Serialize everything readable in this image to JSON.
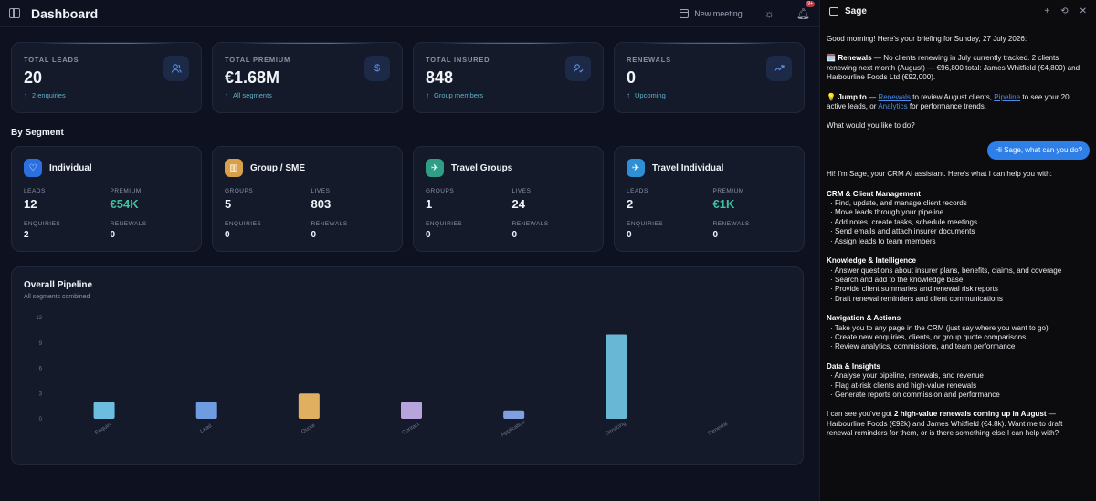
{
  "header": {
    "title": "Dashboard",
    "new_meeting": "New meeting",
    "notif_badge": "9+"
  },
  "stats": [
    {
      "label": "TOTAL LEADS",
      "value": "20",
      "sub": "2 enquiries",
      "icon": "users-icon"
    },
    {
      "label": "TOTAL PREMIUM",
      "value": "€1.68M",
      "sub": "All segments",
      "icon": "dollar-icon"
    },
    {
      "label": "TOTAL INSURED",
      "value": "848",
      "sub": "Group members",
      "icon": "user-check-icon"
    },
    {
      "label": "RENEWALS",
      "value": "0",
      "sub": "Upcoming",
      "icon": "trending-up-icon"
    }
  ],
  "segments_title": "By Segment",
  "segments": [
    {
      "name": "Individual",
      "color": "#2b6fe0",
      "icon": "heart-icon",
      "a_label": "LEADS",
      "a_value": "12",
      "b_label": "PREMIUM",
      "b_value": "€54K",
      "c_label": "ENQUIRIES",
      "c_value": "2",
      "d_label": "RENEWALS",
      "d_value": "0"
    },
    {
      "name": "Group / SME",
      "color": "#d9a04a",
      "icon": "building-icon",
      "a_label": "GROUPS",
      "a_value": "5",
      "b_label": "LIVES",
      "b_value": "803",
      "c_label": "ENQUIRIES",
      "c_value": "0",
      "d_label": "RENEWALS",
      "d_value": "0"
    },
    {
      "name": "Travel Groups",
      "color": "#2e9e86",
      "icon": "plane-icon",
      "a_label": "GROUPS",
      "a_value": "1",
      "b_label": "LIVES",
      "b_value": "24",
      "c_label": "ENQUIRIES",
      "c_value": "0",
      "d_label": "RENEWALS",
      "d_value": "0"
    },
    {
      "name": "Travel Individual",
      "color": "#2f8fd6",
      "icon": "plane-icon",
      "a_label": "LEADS",
      "a_value": "2",
      "b_label": "PREMIUM",
      "b_value": "€1K",
      "c_label": "ENQUIRIES",
      "c_value": "0",
      "d_label": "RENEWALS",
      "d_value": "0"
    }
  ],
  "pipeline": {
    "title": "Overall Pipeline",
    "subtitle": "All segments combined"
  },
  "chart_data": {
    "type": "bar",
    "title": "Overall Pipeline",
    "subtitle": "All segments combined",
    "categories": [
      "Enquiry",
      "Lead",
      "Quote",
      "Contact",
      "Application",
      "Servicing",
      "Renewal"
    ],
    "values": [
      2,
      2,
      3,
      2,
      1,
      10,
      0
    ],
    "colors": [
      "#6cbde0",
      "#6f9be0",
      "#e0b060",
      "#b8a4dc",
      "#7f9fe0",
      "#68b7d4",
      "#6cbde0"
    ],
    "yticks": [
      0,
      3,
      6,
      9,
      12
    ],
    "ylim": [
      0,
      12
    ]
  },
  "chat": {
    "title": "Sage",
    "p1": "Good morning! Here's your briefing for Sunday, 27 July 2026:",
    "p2_lead": "🗓️ Renewals",
    "p2_rest": " — No clients renewing in July currently tracked. 2 clients renewing next month (August) — €96,800 total: James Whitfield (€4,800) and Harbourline Foods Ltd (€92,000).",
    "p3_lead": "💡 Jump to",
    "p3_a": " — ",
    "p3_link1": "Renewals",
    "p3_b": " to review August clients, ",
    "p3_link2": "Pipeline",
    "p3_c": " to see your 20 active leads, or ",
    "p3_link3": "Analytics",
    "p3_d": " for performance trends.",
    "p4": "What would you like to do?",
    "user_msg": "Hi Sage, what can you do?",
    "intro": "Hi! I'm Sage, your CRM AI assistant. Here's what I can help you with:",
    "groups": [
      {
        "title": "CRM & Client Management",
        "items": [
          "· Find, update, and manage client records",
          "· Move leads through your pipeline",
          "· Add notes, create tasks, schedule meetings",
          "· Send emails and attach insurer documents",
          "· Assign leads to team members"
        ]
      },
      {
        "title": "Knowledge & Intelligence",
        "items": [
          "· Answer questions about insurer plans, benefits, claims, and coverage",
          "· Search and add to the knowledge base",
          "· Provide client summaries and renewal risk reports",
          "· Draft renewal reminders and client communications"
        ]
      },
      {
        "title": "Navigation & Actions",
        "items": [
          "· Take you to any page in the CRM (just say where you want to go)",
          "· Create new enquiries, clients, or group quote comparisons",
          "· Review analytics, commissions, and team performance"
        ]
      },
      {
        "title": "Data & Insights",
        "items": [
          "· Analyse your pipeline, renewals, and revenue",
          "· Flag at-risk clients and high-value renewals",
          "· Generate reports on commission and performance"
        ]
      }
    ],
    "final_a": "I can see you've got ",
    "final_bold": "2 high-value renewals coming up in August",
    "final_b": " — Harbourline Foods (€92k) and James Whitfield (€4.8k). Want me to draft renewal reminders for them, or is there something else I can help with?"
  }
}
